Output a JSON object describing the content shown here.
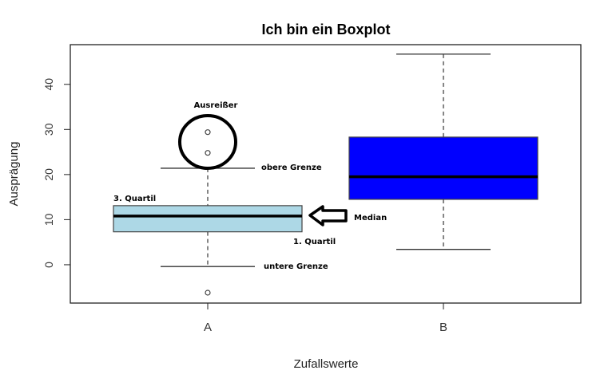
{
  "chart_data": {
    "type": "boxplot",
    "title": "Ich bin ein Boxplot",
    "xlabel": "Zufallswerte",
    "ylabel": "Ausprägung",
    "ylim": [
      -8.5,
      48.8
    ],
    "yticks": [
      0,
      10,
      20,
      30,
      40
    ],
    "grid": false,
    "categories": [
      "A",
      "B"
    ],
    "boxes": [
      {
        "name": "A",
        "fill": "#add8e6",
        "lower_whisker": -0.4,
        "q1": 7.3,
        "median": 10.8,
        "q3": 13.1,
        "upper_whisker": 21.4,
        "outliers": [
          29.4,
          24.8,
          -6.2
        ]
      },
      {
        "name": "B",
        "fill": "#0000ff",
        "lower_whisker": 3.4,
        "q1": 14.5,
        "median": 19.5,
        "q3": 28.3,
        "upper_whisker": 46.7,
        "outliers": []
      }
    ],
    "annotations": {
      "outliers": "Ausreißer",
      "upper_limit": "obere Grenze",
      "q3": "3. Quartil",
      "median": "Median",
      "q1": "1. Quartil",
      "lower_limit": "untere Grenze"
    }
  }
}
